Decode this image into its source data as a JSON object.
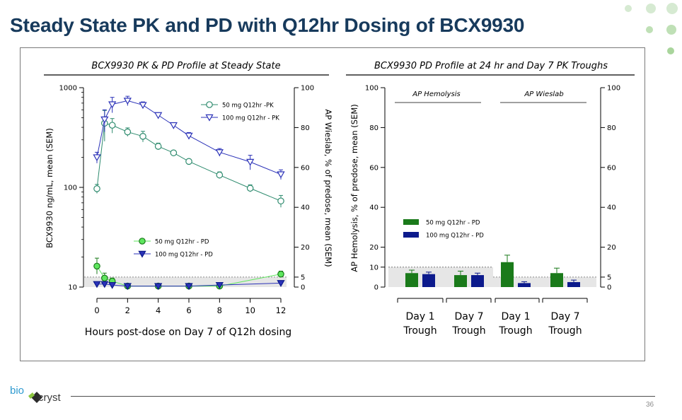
{
  "slide": {
    "title": "Steady State PK and PD with Q12hr Dosing of BCX9930",
    "page_number": "36",
    "logo_text_left": "bio",
    "logo_text_right": "cryst"
  },
  "colors": {
    "title": "#173a5c",
    "green": "#1a7a1a",
    "green_marker": "#5ee65e",
    "navy": "#0c1a8c",
    "blue_line": "#2b32b8",
    "teal_line": "#2e8b6e",
    "shade": "#e6e6e6"
  },
  "chart_data": [
    {
      "type": "line",
      "title": "BCX9930 PK & PD Profile at Steady State",
      "xlabel": "Hours post-dose on Day 7 of Q12h dosing",
      "ylabel_left": "BCX9930 ng/mL, mean (SEM)",
      "ylabel_right": "AP Wieslab, % of predose, mean (SEM)",
      "x_ticks": [
        "0",
        "2",
        "4",
        "6",
        "8",
        "10",
        "12"
      ],
      "y_left_scale": "log",
      "y_left_range": [
        10,
        1000
      ],
      "y_left_ticks": [
        "10",
        "100",
        "1000"
      ],
      "y_right_range": [
        0,
        100
      ],
      "y_right_ticks": [
        "0",
        "5",
        "20",
        "40",
        "60",
        "80",
        "100"
      ],
      "reference_line_right": 5,
      "series": [
        {
          "name": "50 mg Q12hr -PK",
          "axis": "left",
          "marker": "open-circle",
          "x": [
            0,
            0.5,
            1,
            2,
            3,
            4,
            5,
            6,
            8,
            10,
            12
          ],
          "y": [
            97,
            440,
            420,
            360,
            325,
            258,
            222,
            182,
            133,
            98,
            73
          ],
          "err": [
            10,
            150,
            70,
            35,
            40,
            20,
            12,
            10,
            10,
            8,
            10
          ]
        },
        {
          "name": "100 mg Q12hr - PK",
          "axis": "left",
          "marker": "open-triangle-down",
          "x": [
            0,
            0.5,
            1,
            2,
            3,
            4,
            5,
            6,
            8,
            10,
            12
          ],
          "y": [
            200,
            480,
            680,
            740,
            670,
            530,
            420,
            330,
            225,
            180,
            135
          ],
          "err": [
            25,
            120,
            120,
            80,
            50,
            30,
            20,
            25,
            20,
            30,
            15
          ]
        },
        {
          "name": "50 mg Q12hr - PD",
          "axis": "right",
          "marker": "filled-circle",
          "x": [
            0,
            0.5,
            1,
            2,
            4,
            6,
            8,
            12
          ],
          "y": [
            10.5,
            4.5,
            3,
            0.5,
            0.5,
            0.5,
            0.5,
            6.5
          ],
          "err": [
            4,
            2.5,
            1.5,
            0.3,
            0.3,
            0.3,
            0.3,
            1.5
          ]
        },
        {
          "name": "100 mg Q12hr - PD",
          "axis": "right",
          "marker": "filled-triangle-down",
          "x": [
            0,
            0.5,
            1,
            2,
            4,
            6,
            8,
            12
          ],
          "y": [
            1.5,
            1.5,
            1,
            0.5,
            0.5,
            0.5,
            1,
            2
          ],
          "err": [
            0.5,
            0.5,
            0.4,
            0.3,
            0.3,
            0.3,
            0.4,
            0.6
          ]
        }
      ]
    },
    {
      "type": "bar",
      "title": "BCX9930 PD Profile at 24 hr and Day 7 PK Troughs",
      "ylabel": "AP Hemolysis, % of predose, mean (SEM)",
      "y_left_range": [
        0,
        100
      ],
      "y_left_ticks": [
        "0",
        "10",
        "20",
        "40",
        "60",
        "80",
        "100"
      ],
      "y_right_range": [
        0,
        100
      ],
      "y_right_ticks": [
        "0",
        "5",
        "20",
        "40",
        "60",
        "80",
        "100"
      ],
      "groups": [
        {
          "name": "AP Hemolysis",
          "reference_line": 10
        },
        {
          "name": "AP Wieslab",
          "reference_line": 5
        }
      ],
      "categories": [
        {
          "line1": "Day 1",
          "line2": "Trough"
        },
        {
          "line1": "Day 7",
          "line2": "Trough"
        },
        {
          "line1": "Day 1",
          "line2": "Trough"
        },
        {
          "line1": "Day 7",
          "line2": "Trough"
        }
      ],
      "series": [
        {
          "name": "50 mg Q12hr - PD",
          "values": [
            7,
            6,
            12.5,
            7
          ],
          "err": [
            1.5,
            2,
            3.5,
            2.5
          ]
        },
        {
          "name": "100 mg Q12hr - PD",
          "values": [
            6.5,
            6,
            2,
            2.5
          ],
          "err": [
            1,
            1,
            0.7,
            1
          ]
        }
      ]
    }
  ]
}
